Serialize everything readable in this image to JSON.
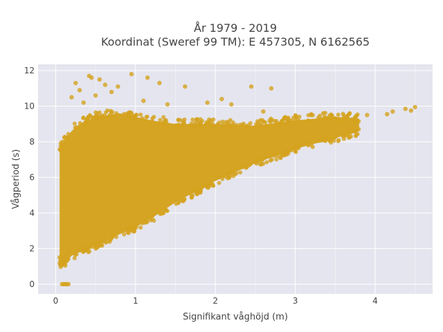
{
  "chart_data": {
    "type": "scatter",
    "title_line1": "År 1979 - 2019",
    "title_line2": "Koordinat (Sweref 99 TM): E 457305, N 6162565",
    "xlabel": "Signifikant våghöjd (m)",
    "ylabel": "Vågperiod (s)",
    "xlim": [
      -0.22,
      4.72
    ],
    "ylim": [
      -0.55,
      12.35
    ],
    "xticks": [
      0,
      1,
      2,
      3,
      4
    ],
    "yticks": [
      0,
      2,
      4,
      6,
      8,
      10,
      12
    ],
    "grid": true,
    "legend": "none",
    "colors": {
      "plot_bg": "#e5e5ef",
      "grid": "#ffffff",
      "marker": "#d4a21e"
    },
    "series": [
      {
        "marker_color": "#d4a21e",
        "density_envelope": {
          "x": [
            0.05,
            0.1,
            0.2,
            0.3,
            0.5,
            0.8,
            1.0,
            1.2,
            1.5,
            2.0,
            2.5,
            3.0,
            3.5,
            3.8
          ],
          "y_low": [
            1.2,
            1.1,
            1.6,
            1.8,
            2.2,
            2.8,
            3.2,
            3.7,
            4.6,
            5.8,
            6.8,
            7.6,
            8.2,
            8.6
          ],
          "y_high": [
            7.5,
            8.0,
            8.6,
            9.0,
            9.4,
            9.6,
            9.4,
            9.2,
            9.0,
            9.0,
            8.9,
            9.2,
            9.4,
            9.3
          ]
        },
        "points": [
          {
            "x": 0.08,
            "y": 0.0
          },
          {
            "x": 0.1,
            "y": 0.0
          },
          {
            "x": 0.12,
            "y": 0.0
          },
          {
            "x": 0.14,
            "y": 0.0
          },
          {
            "x": 0.16,
            "y": 0.0
          },
          {
            "x": 0.05,
            "y": 1.5
          },
          {
            "x": 0.06,
            "y": 1.3
          },
          {
            "x": 0.08,
            "y": 1.1
          },
          {
            "x": 0.12,
            "y": 1.05
          },
          {
            "x": 0.2,
            "y": 10.5
          },
          {
            "x": 0.35,
            "y": 10.2
          },
          {
            "x": 0.45,
            "y": 11.6
          },
          {
            "x": 0.5,
            "y": 10.6
          },
          {
            "x": 0.55,
            "y": 11.5
          },
          {
            "x": 0.62,
            "y": 11.2
          },
          {
            "x": 0.7,
            "y": 10.8
          },
          {
            "x": 0.78,
            "y": 11.1
          },
          {
            "x": 0.95,
            "y": 11.8
          },
          {
            "x": 1.15,
            "y": 11.6
          },
          {
            "x": 1.3,
            "y": 11.3
          },
          {
            "x": 1.62,
            "y": 11.1
          },
          {
            "x": 2.08,
            "y": 10.4
          },
          {
            "x": 2.45,
            "y": 11.1
          },
          {
            "x": 2.7,
            "y": 11.0
          },
          {
            "x": 2.2,
            "y": 10.1
          },
          {
            "x": 0.3,
            "y": 10.9
          },
          {
            "x": 0.25,
            "y": 11.3
          },
          {
            "x": 0.42,
            "y": 11.7
          },
          {
            "x": 1.1,
            "y": 10.3
          },
          {
            "x": 1.4,
            "y": 10.1
          },
          {
            "x": 1.9,
            "y": 10.2
          },
          {
            "x": 3.2,
            "y": 9.5
          },
          {
            "x": 3.35,
            "y": 9.6
          },
          {
            "x": 3.6,
            "y": 9.2
          },
          {
            "x": 3.75,
            "y": 9.1
          },
          {
            "x": 3.9,
            "y": 9.5
          },
          {
            "x": 4.15,
            "y": 9.55
          },
          {
            "x": 4.22,
            "y": 9.7
          },
          {
            "x": 4.38,
            "y": 9.85
          },
          {
            "x": 4.45,
            "y": 9.75
          },
          {
            "x": 4.5,
            "y": 9.95
          },
          {
            "x": 2.9,
            "y": 9.3
          },
          {
            "x": 3.05,
            "y": 9.4
          },
          {
            "x": 2.6,
            "y": 9.7
          }
        ]
      }
    ]
  }
}
